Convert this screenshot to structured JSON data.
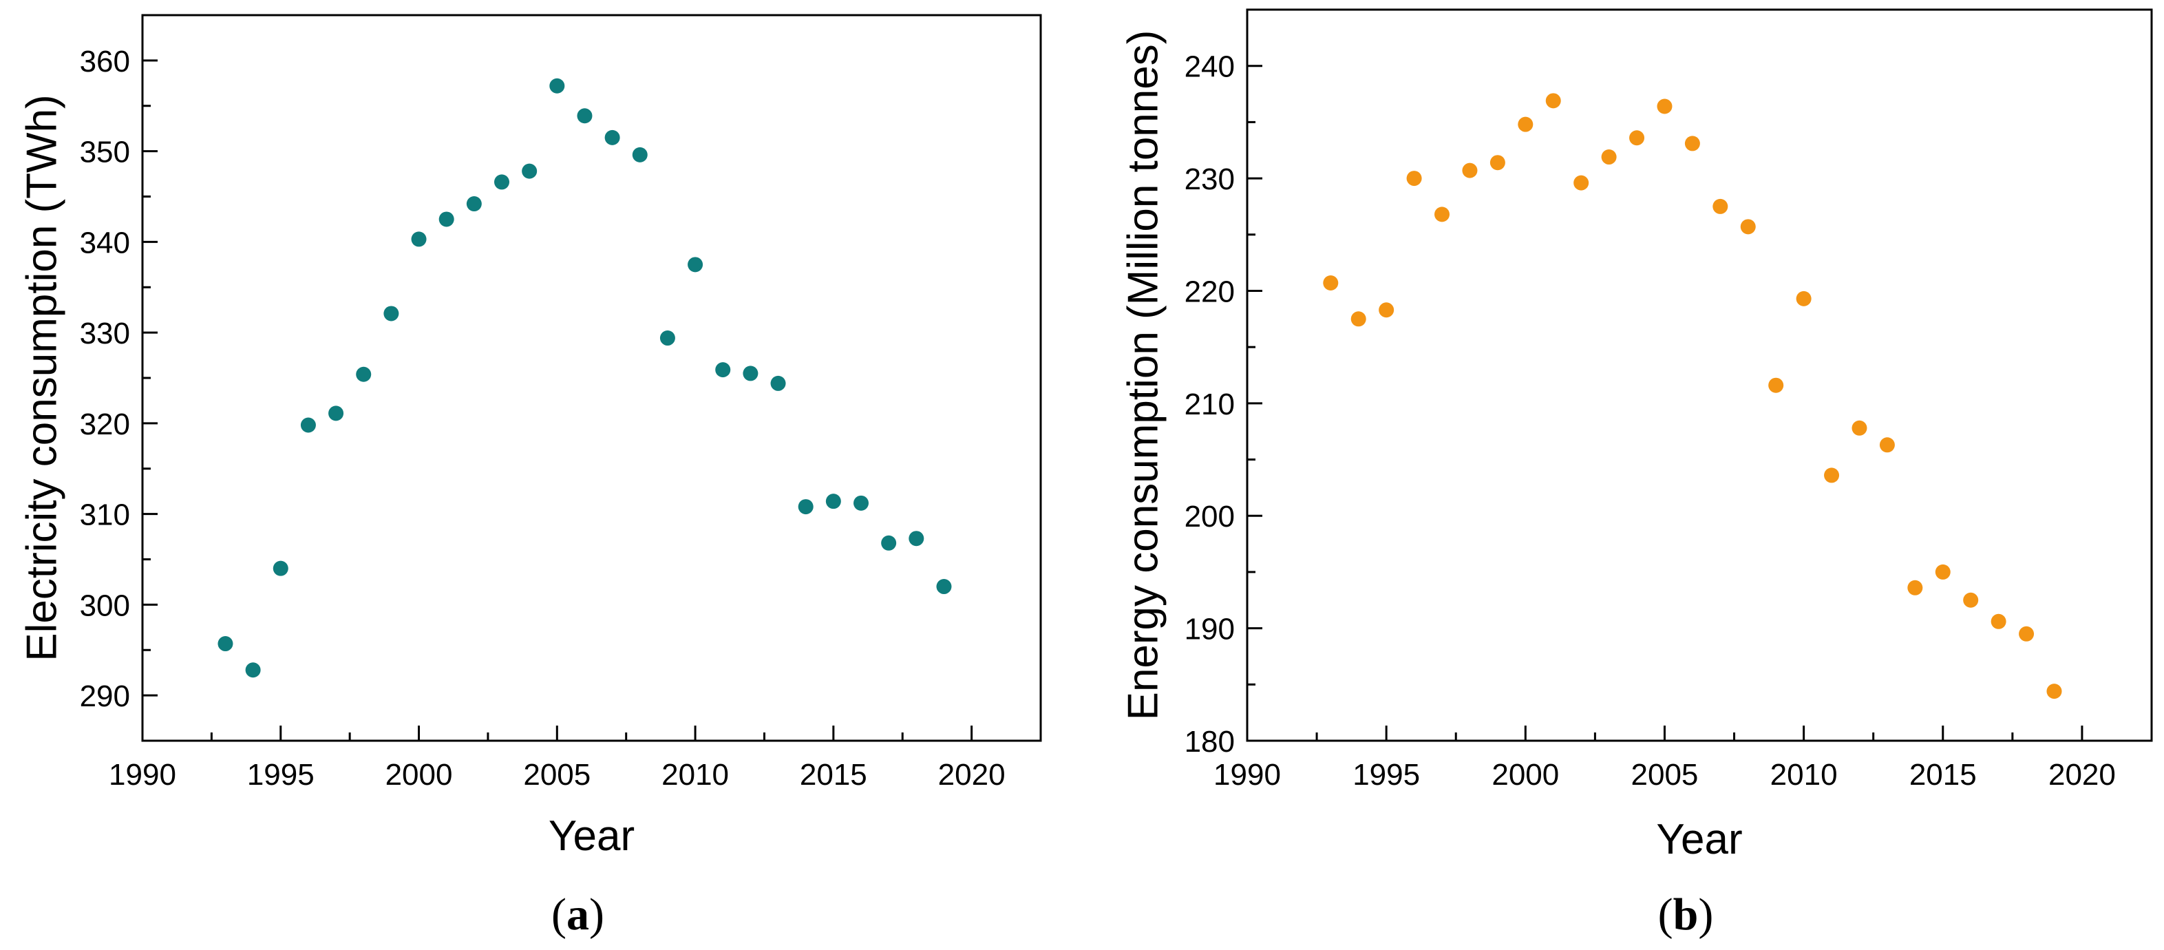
{
  "chart_data": [
    {
      "type": "scatter",
      "panel_label": {
        "open": "(",
        "letter": "a",
        "close": ")"
      },
      "xlabel": "Year",
      "ylabel": "Electricity consumption (TWh)",
      "color": "#0f7c7c",
      "xlim": [
        1990,
        2022.5
      ],
      "ylim": [
        285,
        365
      ],
      "xticks": [
        1990,
        1995,
        2000,
        2005,
        2010,
        2015,
        2020
      ],
      "yticks": [
        290,
        300,
        310,
        320,
        330,
        340,
        350,
        360
      ],
      "x": [
        1993,
        1994,
        1995,
        1996,
        1997,
        1998,
        1999,
        2000,
        2001,
        2002,
        2003,
        2004,
        2005,
        2006,
        2007,
        2008,
        2009,
        2010,
        2011,
        2012,
        2013,
        2014,
        2015,
        2016,
        2017,
        2018,
        2019
      ],
      "y": [
        295.7,
        292.8,
        304.0,
        319.8,
        321.1,
        325.4,
        332.1,
        340.3,
        342.5,
        344.2,
        346.6,
        347.8,
        357.2,
        353.9,
        351.5,
        349.6,
        329.4,
        337.5,
        325.9,
        325.5,
        324.4,
        310.8,
        311.4,
        311.2,
        306.8,
        307.3,
        302.0
      ]
    },
    {
      "type": "scatter",
      "panel_label": {
        "open": "(",
        "letter": "b",
        "close": ")"
      },
      "xlabel": "Year",
      "ylabel": "Energy consumption (Million tonnes)",
      "color": "#f39414",
      "xlim": [
        1990,
        2022.5
      ],
      "ylim": [
        180,
        245
      ],
      "xticks": [
        1990,
        1995,
        2000,
        2005,
        2010,
        2015,
        2020
      ],
      "yticks": [
        180,
        190,
        200,
        210,
        220,
        230,
        240
      ],
      "x": [
        1993,
        1994,
        1995,
        1996,
        1997,
        1998,
        1999,
        2000,
        2001,
        2002,
        2003,
        2004,
        2005,
        2006,
        2007,
        2008,
        2009,
        2010,
        2011,
        2012,
        2013,
        2014,
        2015,
        2016,
        2017,
        2018,
        2019
      ],
      "y": [
        220.7,
        217.5,
        218.3,
        230.0,
        226.8,
        230.7,
        231.4,
        234.8,
        236.9,
        229.6,
        231.9,
        233.6,
        236.4,
        233.1,
        227.5,
        225.7,
        211.6,
        219.3,
        203.6,
        207.8,
        206.3,
        193.6,
        195.0,
        192.5,
        190.6,
        189.5,
        184.4
      ]
    }
  ]
}
